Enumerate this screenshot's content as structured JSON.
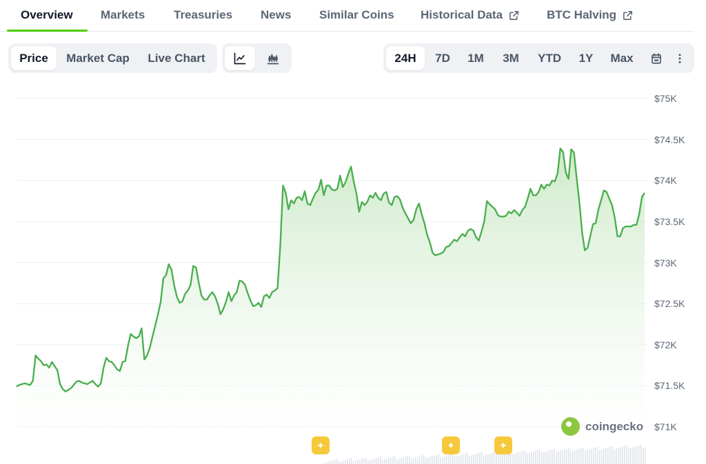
{
  "tabs": [
    {
      "label": "Overview",
      "active": true
    },
    {
      "label": "Markets"
    },
    {
      "label": "Treasuries"
    },
    {
      "label": "News"
    },
    {
      "label": "Similar Coins"
    },
    {
      "label": "Historical Data",
      "external": true
    },
    {
      "label": "BTC Halving",
      "external": true
    }
  ],
  "chart_type_toggle": [
    "Price",
    "Market Cap",
    "Live Chart"
  ],
  "chart_style_icons": [
    "line-chart-icon",
    "candlestick-icon"
  ],
  "range_buttons": [
    "24H",
    "7D",
    "1M",
    "3M",
    "YTD",
    "1Y",
    "Max"
  ],
  "range_icons": [
    "calendar-icon",
    "more-vertical-icon"
  ],
  "watermark": "coingecko",
  "colors": {
    "accent": "#4bcc00",
    "line": "#4caf50",
    "fill": "#e8f5e3",
    "marker": "#f6c93b"
  },
  "chart_data": {
    "type": "area",
    "y_tick_labels": [
      "$75K",
      "$74.5K",
      "$74K",
      "$73.5K",
      "$73K",
      "$72.5K",
      "$72K",
      "$71.5K",
      "$71K"
    ],
    "ylim": [
      71000,
      75000
    ],
    "grid": true,
    "values": [
      71490,
      71510,
      71520,
      71530,
      71520,
      71510,
      71560,
      71870,
      71830,
      71800,
      71750,
      71760,
      71720,
      71790,
      71740,
      71690,
      71520,
      71460,
      71430,
      71450,
      71470,
      71510,
      71550,
      71560,
      71540,
      71530,
      71520,
      71540,
      71560,
      71520,
      71490,
      71530,
      71720,
      71840,
      71800,
      71790,
      71750,
      71700,
      71680,
      71790,
      71800,
      71990,
      72130,
      72100,
      72080,
      72100,
      72200,
      71820,
      71870,
      71960,
      72100,
      72230,
      72370,
      72520,
      72810,
      72850,
      72980,
      72910,
      72720,
      72580,
      72510,
      72530,
      72620,
      72660,
      72730,
      72960,
      72940,
      72760,
      72600,
      72550,
      72550,
      72600,
      72640,
      72590,
      72500,
      72370,
      72430,
      72520,
      72640,
      72530,
      72600,
      72640,
      72780,
      72770,
      72730,
      72630,
      72540,
      72470,
      72480,
      72510,
      72460,
      72590,
      72610,
      72570,
      72640,
      72660,
      72690,
      73210,
      73940,
      73850,
      73650,
      73760,
      73720,
      73790,
      73800,
      73760,
      73870,
      73720,
      73700,
      73780,
      73850,
      73890,
      74010,
      73820,
      73940,
      73940,
      73890,
      73880,
      73900,
      74060,
      73920,
      73980,
      74080,
      74170,
      73990,
      73840,
      73620,
      73740,
      73700,
      73740,
      73820,
      73790,
      73850,
      73790,
      73760,
      73840,
      73860,
      73730,
      73700,
      73800,
      73810,
      73770,
      73670,
      73600,
      73540,
      73480,
      73520,
      73650,
      73720,
      73590,
      73480,
      73340,
      73250,
      73120,
      73090,
      73100,
      73110,
      73130,
      73190,
      73200,
      73240,
      73280,
      73260,
      73310,
      73350,
      73320,
      73390,
      73410,
      73390,
      73310,
      73270,
      73380,
      73500,
      73750,
      73710,
      73680,
      73650,
      73580,
      73560,
      73560,
      73570,
      73620,
      73600,
      73640,
      73610,
      73570,
      73640,
      73680,
      73780,
      73900,
      73820,
      73820,
      73860,
      73950,
      73900,
      73950,
      73940,
      74000,
      73990,
      74090,
      74390,
      74350,
      74100,
      74020,
      74380,
      74340,
      74030,
      73730,
      73370,
      73150,
      73180,
      73320,
      73470,
      73480,
      73650,
      73760,
      73880,
      73860,
      73780,
      73700,
      73550,
      73320,
      73320,
      73420,
      73440,
      73440,
      73440,
      73460,
      73460,
      73590,
      73800,
      73850
    ]
  }
}
